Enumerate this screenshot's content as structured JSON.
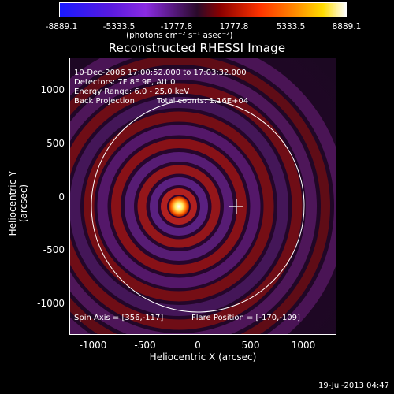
{
  "colorbar": {
    "ticks": [
      "-8889.1",
      "-5333.5",
      "-1777.8",
      "1777.8",
      "5333.5",
      "8889.1"
    ],
    "unit": "(photons cm⁻² s⁻¹ asec⁻²)",
    "colors": [
      "#1a1aff",
      "#8a2be2",
      "#2a0a2a",
      "#8a0000",
      "#ff3300",
      "#ffdd00",
      "#ffffff"
    ]
  },
  "title": "Reconstructed RHESSI Image",
  "annotations": {
    "time": "10-Dec-2006 17:00:52.000 to 17:03:32.000",
    "detectors": "Detectors: 7F 8F 9F, Att 0",
    "energy": "Energy Range: 6.0 - 25.0 keV",
    "method": "Back Projection",
    "counts": "Total counts: 1.16E+04",
    "spin_axis": "Spin Axis = [356,-117]",
    "flare_position": "Flare Position = [-170,-109]"
  },
  "axes": {
    "x_ticks": [
      "-1000",
      "-500",
      "0",
      "500",
      "1000"
    ],
    "y_ticks": [
      "1000",
      "500",
      "0",
      "-500",
      "-1000"
    ],
    "xlabel": "Heliocentric X (arcsec)",
    "ylabel": "Heliocentric Y (arcsec)"
  },
  "footer": {
    "date": "19-Jul-2013 04:47"
  }
}
